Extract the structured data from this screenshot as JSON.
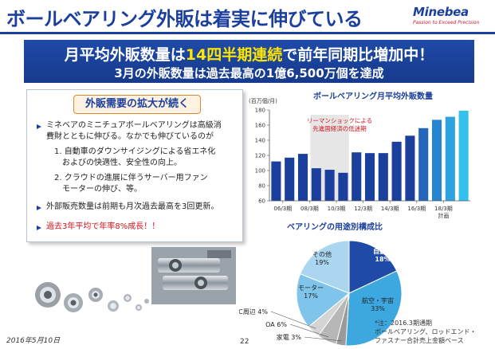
{
  "header": {
    "title": "ボールベアリング外販は着実に伸びている",
    "logo": {
      "name": "Minebea",
      "tagline": "Passion to Exceed Precision"
    }
  },
  "banner": {
    "line1_pre": "月平均外販数量は",
    "line1_highlight": "14四半期連続",
    "line1_post": "で前年同期比増加中！",
    "line2": "3月の外販数量は過去最高の1億6,500万個を達成",
    "highlight_color": "#ffe600"
  },
  "left_panel": {
    "heading": "外販需要の拡大が続く",
    "bullet1": [
      "ミネベアのミニチュアボールベアリングは高級消",
      "費財とともに伸びる。なかでも伸びているのが"
    ],
    "item1": [
      "1. 自動車のダウンサイジングによる省エネ化",
      "およびの快適性、安全性の向上。"
    ],
    "item2": [
      "2. クラウドの進展に伴うサーバー用ファン",
      "モーターの伸び、等。"
    ],
    "bullet2": "外部販売数量は前期も月次過去最高を3回更新。",
    "bullet3": "過去3年平均で年率8%成長！！"
  },
  "chart_data": [
    {
      "type": "bar",
      "title": "ボールベアリング月平均外販数量",
      "ylabel": "(百万個/月)",
      "ylim": [
        60,
        180
      ],
      "yticks": [
        60,
        80,
        100,
        120,
        140,
        160,
        180
      ],
      "grid": false,
      "tick_labels": [
        "06/3期",
        "08/3期",
        "10/3期",
        "12/3期",
        "14/3期",
        "16/3期",
        "18/3期"
      ],
      "tick_label_extra": "計画",
      "values": [
        112,
        117,
        122,
        103,
        101,
        97,
        124,
        123,
        123,
        138,
        146,
        156,
        167,
        171,
        179
      ],
      "annotation": [
        "リーマンショックによる",
        "先進国経済の低迷期"
      ],
      "shaded_range": [
        3,
        5
      ],
      "colors": {
        "bar": "#1b3f9c",
        "highlight_from": "#1b3f9c",
        "highlight_to": "#35c1ee",
        "shade": "#e6e6e6",
        "annotation": "#d0141c"
      }
    },
    {
      "type": "pie",
      "title": "ベアリングの用途別構成比",
      "slices": [
        {
          "label": "自動車",
          "value": 18,
          "display": "自動車\n18%",
          "color": "#1f4aa8"
        },
        {
          "label": "航空・宇宙",
          "value": 33,
          "display": "航空・宇宙\n33%",
          "color": "#3da7df"
        },
        {
          "label": "家電",
          "value": 3,
          "display": "家電 3%",
          "color": "#9a9a9a"
        },
        {
          "label": "OA",
          "value": 6,
          "display": "OA 6%",
          "color": "#b7b7b7"
        },
        {
          "label": "PC周辺",
          "value": 4,
          "display": "PC周辺 4%",
          "color": "#d4d4d4"
        },
        {
          "label": "モーター",
          "value": 17,
          "display": "モーター\n17%",
          "color": "#7fc4ea"
        },
        {
          "label": "その他",
          "value": 19,
          "display": "その他\n19%",
          "color": "#aad6f0"
        }
      ]
    }
  ],
  "footnote": [
    "*注：2016.3期通期",
    "ボールベアリング、ロッドエンド・",
    "ファスナー合計売上金額ベース"
  ],
  "date": "2016年5月10日",
  "page_number": "22"
}
